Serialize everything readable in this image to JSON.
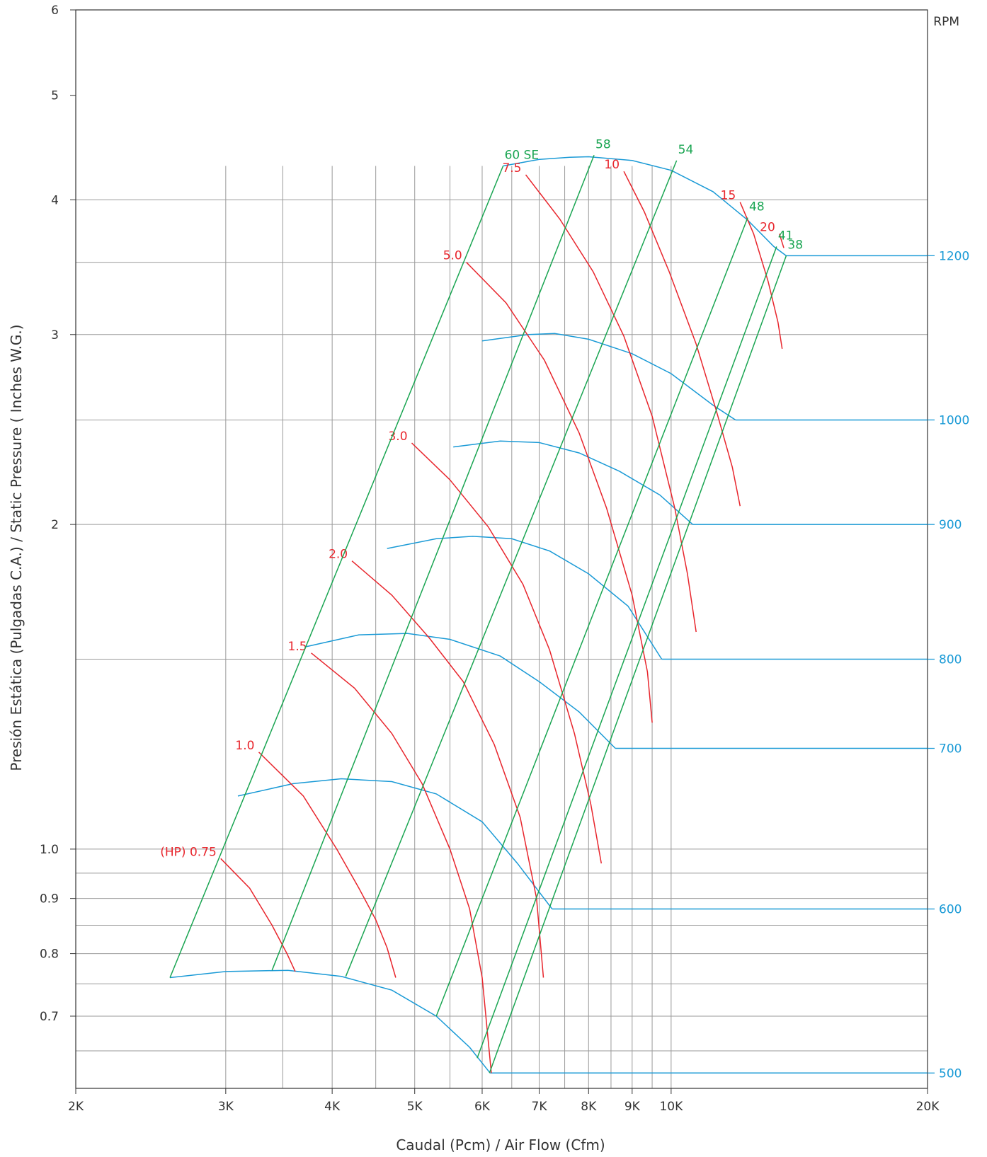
{
  "chart_data": {
    "type": "line",
    "title": "",
    "xlabel": "Caudal (Pcm) / Air Flow (Cfm)",
    "ylabel": "Presión Estática (Pulgadas C.A.)  /  Static Pressure ( Inches W.G.)",
    "x_scale": "log",
    "y_scale": "log",
    "xlim": [
      2000,
      20000
    ],
    "ylim": [
      0.6,
      6
    ],
    "x_ticks": [
      {
        "value": 2000,
        "label": "2K"
      },
      {
        "value": 3000,
        "label": "3K"
      },
      {
        "value": 4000,
        "label": "4K"
      },
      {
        "value": 5000,
        "label": "5K"
      },
      {
        "value": 6000,
        "label": "6K"
      },
      {
        "value": 7000,
        "label": "7K"
      },
      {
        "value": 8000,
        "label": "8K"
      },
      {
        "value": 9000,
        "label": "9K"
      },
      {
        "value": 10000,
        "label": "10K"
      },
      {
        "value": 20000,
        "label": "20K"
      }
    ],
    "y_ticks": [
      {
        "value": 0.7,
        "label": "0.7"
      },
      {
        "value": 0.8,
        "label": "0.8"
      },
      {
        "value": 0.9,
        "label": "0.9"
      },
      {
        "value": 1.0,
        "label": "1.0"
      },
      {
        "value": 2,
        "label": "2"
      },
      {
        "value": 3,
        "label": "3"
      },
      {
        "value": 4,
        "label": "4"
      },
      {
        "value": 5,
        "label": "5"
      },
      {
        "value": 6,
        "label": "6"
      }
    ],
    "secondary_axis": {
      "label": "RPM",
      "ticks": [
        {
          "value": 500,
          "label": "500",
          "y": 0.62
        },
        {
          "value": 600,
          "label": "600",
          "y": 0.88
        },
        {
          "value": 700,
          "label": "700",
          "y": 1.24
        },
        {
          "value": 800,
          "label": "800",
          "y": 1.5
        },
        {
          "value": 900,
          "label": "900",
          "y": 2.0
        },
        {
          "value": 1000,
          "label": "1000",
          "y": 2.5
        },
        {
          "value": 1200,
          "label": "1200",
          "y": 3.55
        }
      ]
    },
    "grid": true,
    "rpm_curves": [
      {
        "rpm": 500,
        "points": [
          [
            2580,
            0.76
          ],
          [
            3000,
            0.77
          ],
          [
            3550,
            0.772
          ],
          [
            4100,
            0.762
          ],
          [
            4700,
            0.74
          ],
          [
            5300,
            0.7
          ],
          [
            5800,
            0.655
          ],
          [
            6130,
            0.62
          ]
        ],
        "extends_to_x": 20000
      },
      {
        "rpm": 600,
        "points": [
          [
            3100,
            1.12
          ],
          [
            3600,
            1.15
          ],
          [
            4100,
            1.162
          ],
          [
            4700,
            1.155
          ],
          [
            5300,
            1.125
          ],
          [
            6000,
            1.06
          ],
          [
            6600,
            0.97
          ],
          [
            7250,
            0.88
          ]
        ],
        "extends_to_x": 20000
      },
      {
        "rpm": 700,
        "points": [
          [
            3720,
            1.54
          ],
          [
            4300,
            1.58
          ],
          [
            4900,
            1.585
          ],
          [
            5500,
            1.565
          ],
          [
            6300,
            1.51
          ],
          [
            7000,
            1.43
          ],
          [
            7800,
            1.34
          ],
          [
            8600,
            1.24
          ]
        ],
        "extends_to_x": 20000
      },
      {
        "rpm": 800,
        "points": [
          [
            4640,
            1.9
          ],
          [
            5300,
            1.94
          ],
          [
            5850,
            1.95
          ],
          [
            6500,
            1.94
          ],
          [
            7200,
            1.89
          ],
          [
            8000,
            1.8
          ],
          [
            8900,
            1.68
          ],
          [
            9750,
            1.5
          ]
        ],
        "extends_to_x": 20000
      },
      {
        "rpm": 900,
        "points": [
          [
            5550,
            2.36
          ],
          [
            6300,
            2.39
          ],
          [
            7000,
            2.382
          ],
          [
            7800,
            2.33
          ],
          [
            8700,
            2.24
          ],
          [
            9700,
            2.13
          ],
          [
            10600,
            2.0
          ]
        ],
        "extends_to_x": 20000
      },
      {
        "rpm": 1000,
        "points": [
          [
            6000,
            2.96
          ],
          [
            6800,
            3.0
          ],
          [
            7300,
            3.007
          ],
          [
            8000,
            2.97
          ],
          [
            9000,
            2.88
          ],
          [
            10000,
            2.76
          ],
          [
            11200,
            2.58
          ],
          [
            11900,
            2.5
          ]
        ],
        "extends_to_x": 20000
      },
      {
        "rpm": 1200,
        "points": [
          [
            6350,
            4.3
          ],
          [
            7000,
            4.36
          ],
          [
            7600,
            4.38
          ],
          [
            8000,
            4.385
          ],
          [
            9000,
            4.35
          ],
          [
            10000,
            4.26
          ],
          [
            11200,
            4.07
          ],
          [
            12300,
            3.83
          ],
          [
            13200,
            3.62
          ],
          [
            13650,
            3.55
          ]
        ],
        "extends_to_x": 20000
      }
    ],
    "hp_curves": [
      {
        "label": "(HP) 0.75",
        "points": [
          [
            2960,
            0.98
          ],
          [
            3200,
            0.92
          ],
          [
            3400,
            0.85
          ],
          [
            3540,
            0.8
          ],
          [
            3620,
            0.77
          ]
        ]
      },
      {
        "label": "1.0",
        "points": [
          [
            3280,
            1.23
          ],
          [
            3700,
            1.12
          ],
          [
            4050,
            1.0
          ],
          [
            4300,
            0.92
          ],
          [
            4500,
            0.86
          ],
          [
            4640,
            0.81
          ],
          [
            4750,
            0.76
          ]
        ]
      },
      {
        "label": "1.5",
        "points": [
          [
            3780,
            1.52
          ],
          [
            4250,
            1.41
          ],
          [
            4700,
            1.28
          ],
          [
            5100,
            1.15
          ],
          [
            5500,
            1.0
          ],
          [
            5800,
            0.88
          ],
          [
            6000,
            0.76
          ],
          [
            6150,
            0.62
          ]
        ]
      },
      {
        "label": "2.0",
        "points": [
          [
            4220,
            1.85
          ],
          [
            4700,
            1.72
          ],
          [
            5200,
            1.57
          ],
          [
            5700,
            1.43
          ],
          [
            6200,
            1.25
          ],
          [
            6650,
            1.07
          ],
          [
            6950,
            0.9
          ],
          [
            7080,
            0.76
          ]
        ]
      },
      {
        "label": "3.0",
        "points": [
          [
            4960,
            2.38
          ],
          [
            5500,
            2.2
          ],
          [
            6100,
            1.99
          ],
          [
            6700,
            1.76
          ],
          [
            7200,
            1.53
          ],
          [
            7700,
            1.28
          ],
          [
            8050,
            1.1
          ],
          [
            8280,
            0.97
          ]
        ]
      },
      {
        "label": "5.0",
        "points": [
          [
            5750,
            3.5
          ],
          [
            6400,
            3.21
          ],
          [
            7100,
            2.84
          ],
          [
            7800,
            2.43
          ],
          [
            8400,
            2.07
          ],
          [
            9000,
            1.72
          ],
          [
            9380,
            1.46
          ],
          [
            9500,
            1.31
          ]
        ]
      },
      {
        "label": "7.5",
        "points": [
          [
            6750,
            4.22
          ],
          [
            7400,
            3.84
          ],
          [
            8100,
            3.43
          ],
          [
            8800,
            2.99
          ],
          [
            9500,
            2.52
          ],
          [
            10100,
            2.07
          ],
          [
            10450,
            1.8
          ],
          [
            10700,
            1.59
          ]
        ]
      },
      {
        "label": "10",
        "points": [
          [
            8800,
            4.25
          ],
          [
            9300,
            3.9
          ],
          [
            9950,
            3.43
          ],
          [
            10700,
            2.94
          ],
          [
            11300,
            2.55
          ],
          [
            11800,
            2.26
          ],
          [
            12050,
            2.08
          ]
        ]
      },
      {
        "label": "15",
        "points": [
          [
            12050,
            3.98
          ],
          [
            12500,
            3.72
          ],
          [
            13000,
            3.36
          ],
          [
            13350,
            3.08
          ],
          [
            13500,
            2.91
          ]
        ]
      },
      {
        "label": "20",
        "points": [
          [
            13400,
            3.72
          ],
          [
            13560,
            3.61
          ]
        ]
      }
    ],
    "model_lines": [
      {
        "label": "60 SE",
        "start": [
          2580,
          0.76
        ],
        "end": [
          6350,
          4.3
        ]
      },
      {
        "label": "58",
        "start": [
          3400,
          0.772
        ],
        "end": [
          8120,
          4.4
        ]
      },
      {
        "label": "54",
        "start": [
          4150,
          0.762
        ],
        "end": [
          10150,
          4.35
        ]
      },
      {
        "label": "48",
        "start": [
          5300,
          0.7
        ],
        "end": [
          12300,
          3.85
        ]
      },
      {
        "label": "41",
        "start": [
          5920,
          0.64
        ],
        "end": [
          13300,
          3.62
        ]
      },
      {
        "label": "38",
        "start": [
          6120,
          0.62
        ],
        "end": [
          13650,
          3.55
        ]
      }
    ],
    "colors": {
      "rpm": "#1a9ad6",
      "hp": "#e8262d",
      "model": "#1aa552",
      "grid": "#9a9a9a",
      "axis": "#333333"
    }
  }
}
